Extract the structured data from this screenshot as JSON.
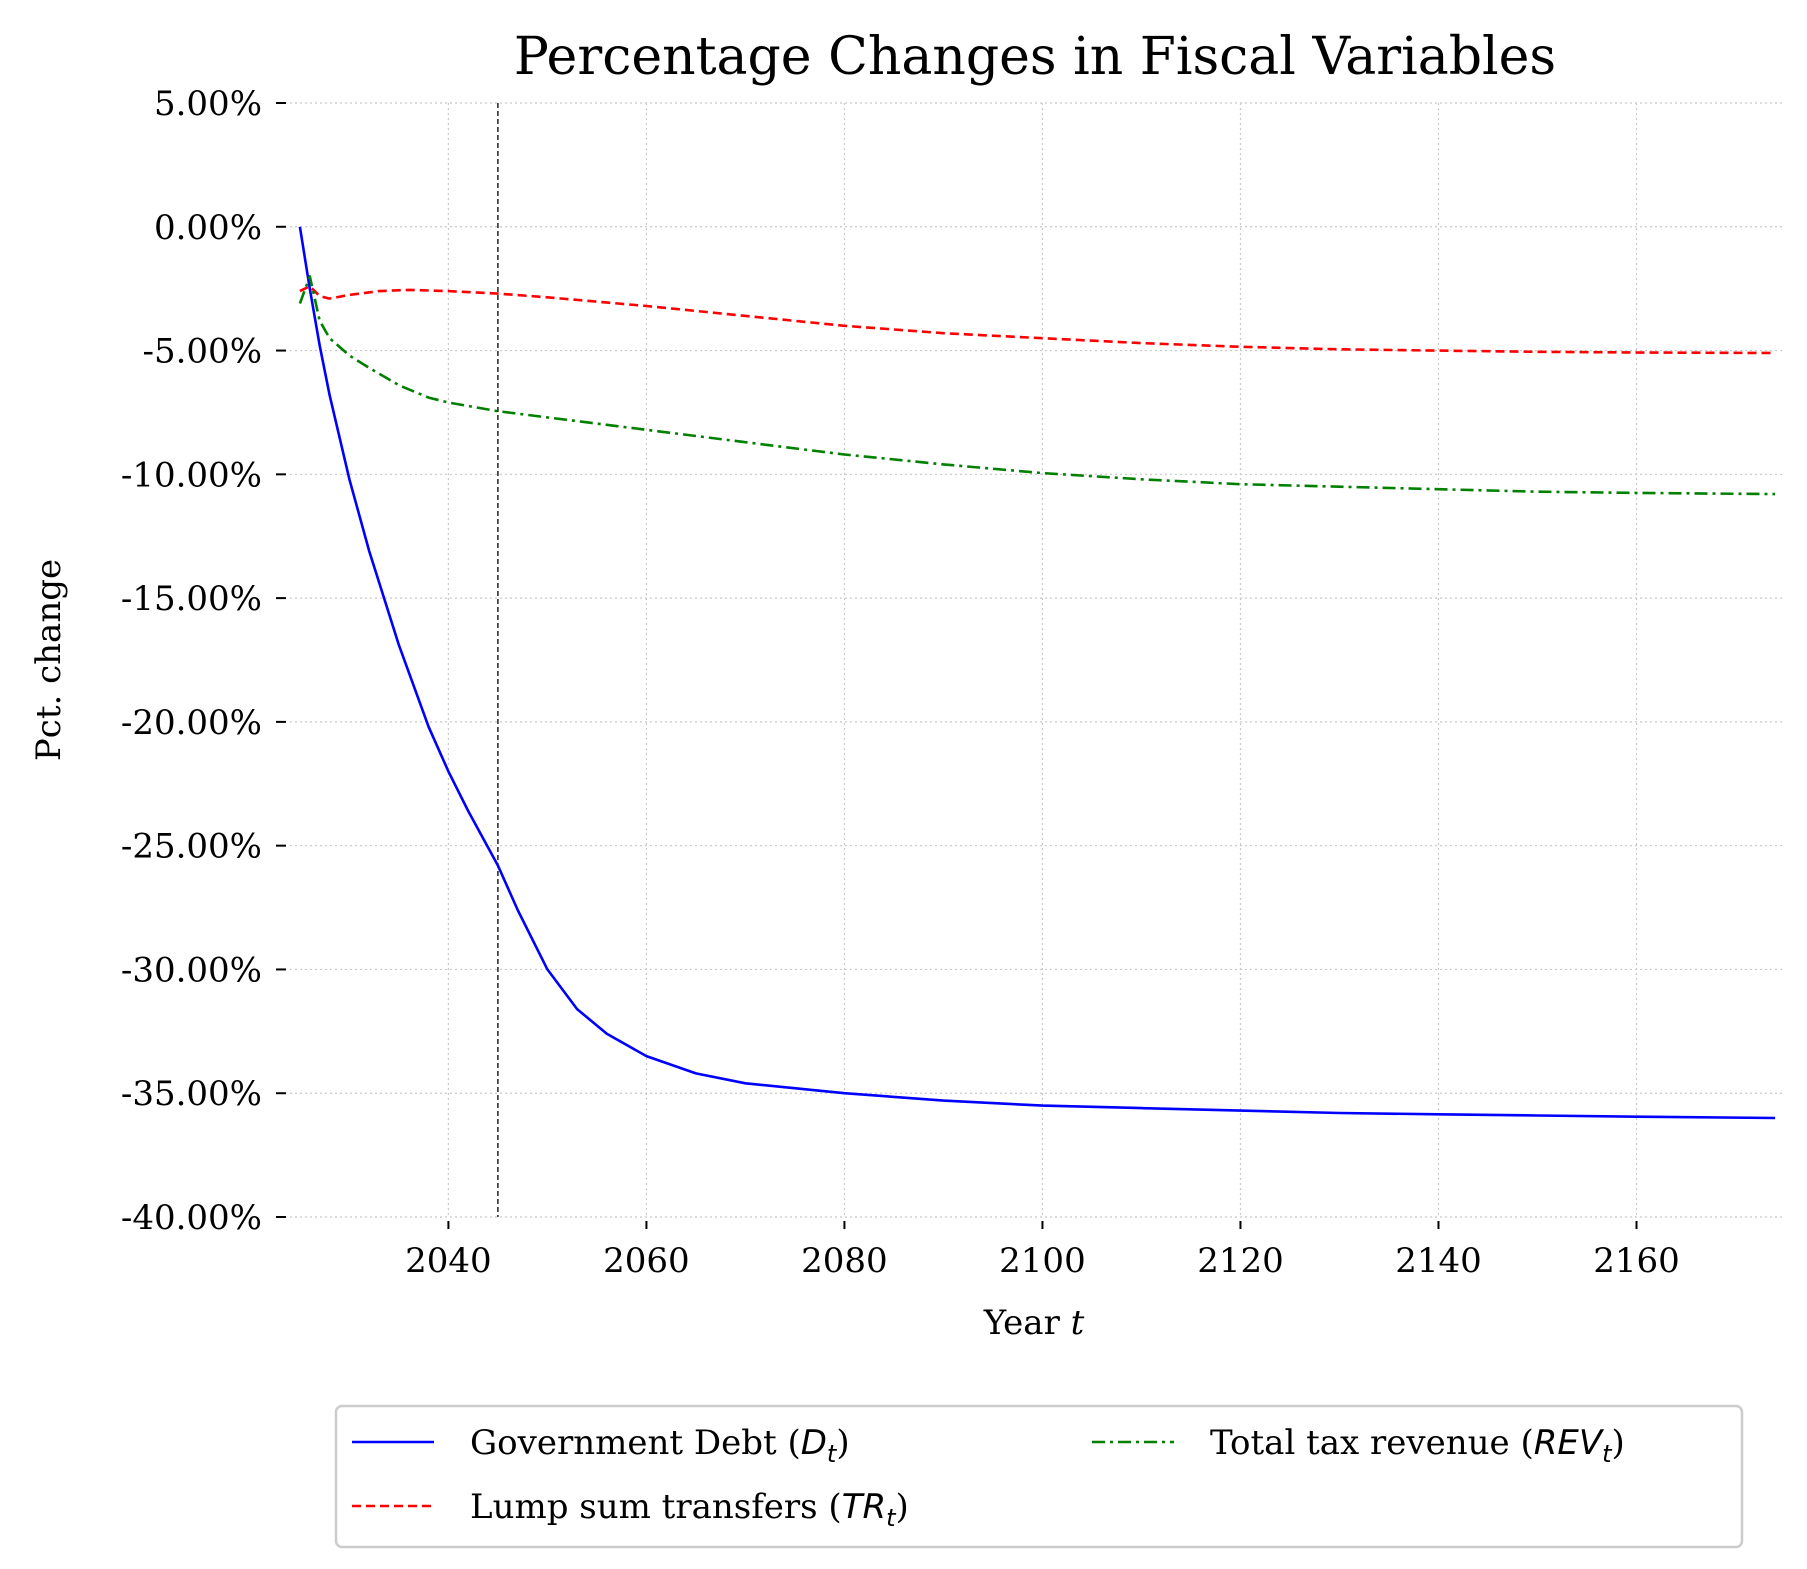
{
  "chart_data": {
    "type": "line",
    "title": "Percentage Changes in Fiscal Variables",
    "xlabel": "Year t",
    "ylabel": "Pct. change",
    "xlim": [
      2024,
      2175
    ],
    "ylim": [
      -40,
      5
    ],
    "x_ticks": [
      2040,
      2060,
      2080,
      2100,
      2120,
      2140,
      2160
    ],
    "x_tick_labels": [
      "2040",
      "2060",
      "2080",
      "2100",
      "2120",
      "2140",
      "2160"
    ],
    "y_ticks": [
      5,
      0,
      -5,
      -10,
      -15,
      -20,
      -25,
      -30,
      -35,
      -40
    ],
    "y_tick_labels": [
      "5.00%",
      "0.00%",
      "-5.00%",
      "-10.00%",
      "-15.00%",
      "-20.00%",
      "-25.00%",
      "-30.00%",
      "-35.00%",
      "-40.00%"
    ],
    "grid": true,
    "vline_x": 2045,
    "legend_position": "bottom-center",
    "series": [
      {
        "name": "Government Debt (D_t)",
        "legend_main": "Government Debt (",
        "legend_sym": "D",
        "legend_sub": "t",
        "color": "#0000ff",
        "style": "solid",
        "x": [
          2025,
          2026,
          2027,
          2028,
          2030,
          2032,
          2035,
          2038,
          2040,
          2042,
          2045,
          2047,
          2050,
          2053,
          2056,
          2060,
          2065,
          2070,
          2080,
          2090,
          2100,
          2110,
          2120,
          2130,
          2140,
          2150,
          2160,
          2174
        ],
        "y": [
          0,
          -2.5,
          -4.8,
          -6.8,
          -10.2,
          -13.1,
          -16.9,
          -20.2,
          -22.0,
          -23.6,
          -25.8,
          -27.6,
          -30.0,
          -31.6,
          -32.6,
          -33.5,
          -34.2,
          -34.6,
          -35.0,
          -35.3,
          -35.5,
          -35.6,
          -35.7,
          -35.8,
          -35.85,
          -35.9,
          -35.95,
          -36.0
        ]
      },
      {
        "name": "Lump sum transfers (TR_t)",
        "legend_main": "Lump sum transfers (",
        "legend_sym": "TR",
        "legend_sub": "t",
        "color": "#ff0000",
        "style": "dashed",
        "x": [
          2025,
          2026,
          2027,
          2028,
          2030,
          2033,
          2036,
          2040,
          2045,
          2050,
          2060,
          2070,
          2080,
          2090,
          2100,
          2110,
          2120,
          2130,
          2140,
          2150,
          2160,
          2174
        ],
        "y": [
          -2.6,
          -2.4,
          -2.8,
          -2.9,
          -2.75,
          -2.6,
          -2.55,
          -2.6,
          -2.7,
          -2.85,
          -3.2,
          -3.6,
          -4.0,
          -4.3,
          -4.5,
          -4.7,
          -4.85,
          -4.95,
          -5.0,
          -5.05,
          -5.08,
          -5.1
        ]
      },
      {
        "name": "Total tax revenue (REV_t)",
        "legend_main": "Total tax revenue (",
        "legend_sym": "REV",
        "legend_sub": "t",
        "color": "#008000",
        "style": "dashdot",
        "x": [
          2025,
          2026,
          2027,
          2028,
          2030,
          2032,
          2035,
          2038,
          2040,
          2045,
          2050,
          2060,
          2070,
          2080,
          2090,
          2100,
          2110,
          2120,
          2130,
          2140,
          2150,
          2160,
          2174
        ],
        "y": [
          -3.1,
          -2.0,
          -3.8,
          -4.5,
          -5.2,
          -5.7,
          -6.4,
          -6.9,
          -7.1,
          -7.45,
          -7.7,
          -8.2,
          -8.7,
          -9.2,
          -9.6,
          -9.95,
          -10.2,
          -10.4,
          -10.5,
          -10.6,
          -10.7,
          -10.75,
          -10.8
        ]
      }
    ]
  }
}
